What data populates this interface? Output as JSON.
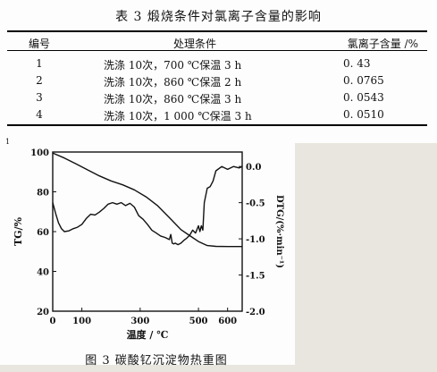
{
  "table": {
    "title": "表 3  煅烧条件对氯离子含量的影响",
    "headers": {
      "no": "编号",
      "condition": "处理条件",
      "chloride": "氯离子含量 /%"
    },
    "rows": [
      {
        "no": "1",
        "condition": "洗涤 10次，700 ℃保温 3 h",
        "chloride": "0. 43"
      },
      {
        "no": "2",
        "condition": "洗涤 10次，860 ℃保温 2 h",
        "chloride": "0. 0765"
      },
      {
        "no": "3",
        "condition": "洗涤 10次，860 ℃保温 3 h",
        "chloride": "0. 0543"
      },
      {
        "no": "4",
        "condition": "洗涤 10次，1 000 ℃保温 3 h",
        "chloride": "0. 0510"
      }
    ]
  },
  "footmark": "1",
  "figure": {
    "caption": "图 3   碳酸钇沉淀物热重图"
  },
  "chart_data": {
    "type": "line",
    "xlabel": "温度 / ℃",
    "ylabel": "TG/%",
    "ylabel_right": "DTG/(%·min⁻¹)",
    "xlim": [
      0,
      650
    ],
    "ylim": [
      20,
      100
    ],
    "ylim_right": [
      -2.0,
      0.2
    ],
    "xticks": [
      "0",
      "100",
      "300",
      "500",
      "600"
    ],
    "xtick_values": [
      0,
      100,
      300,
      500,
      600
    ],
    "yticks_left": [
      "20",
      "40",
      "60",
      "80",
      "100"
    ],
    "ytick_values_left": [
      20,
      40,
      60,
      80,
      100
    ],
    "yticks_right": [
      "-2.0",
      "-1.5",
      "-1.0",
      "-0.5",
      "0.0"
    ],
    "ytick_values_right": [
      -2.0,
      -1.5,
      -1.0,
      -0.5,
      0.0
    ],
    "colors": {
      "line": "#111111"
    },
    "series": [
      {
        "axis": "left",
        "x": [
          0,
          40,
          80,
          120,
          160,
          200,
          240,
          280,
          320,
          360,
          400,
          440,
          470,
          500,
          530,
          560,
          600,
          650
        ],
        "y": [
          99.5,
          97,
          94,
          91,
          88,
          85.5,
          83.5,
          81,
          77.5,
          73,
          67,
          61,
          58,
          55,
          53,
          52.6,
          52.5,
          52.5
        ]
      },
      {
        "axis": "right",
        "x": [
          0,
          10,
          20,
          30,
          40,
          55,
          70,
          85,
          100,
          115,
          130,
          145,
          160,
          175,
          190,
          205,
          220,
          235,
          250,
          265,
          280,
          295,
          310,
          325,
          340,
          355,
          370,
          385,
          400,
          405,
          410,
          415,
          420,
          430,
          440,
          450,
          460,
          470,
          480,
          490,
          500,
          505,
          510,
          515,
          520,
          530,
          540,
          550,
          560,
          580,
          600,
          620,
          640,
          650
        ],
        "y": [
          -0.5,
          -0.65,
          -0.78,
          -0.86,
          -0.9,
          -0.89,
          -0.86,
          -0.84,
          -0.8,
          -0.72,
          -0.66,
          -0.67,
          -0.63,
          -0.58,
          -0.52,
          -0.5,
          -0.52,
          -0.5,
          -0.54,
          -0.51,
          -0.56,
          -0.68,
          -0.73,
          -0.8,
          -0.88,
          -0.92,
          -0.96,
          -0.98,
          -1.01,
          -0.94,
          -1.06,
          -1.07,
          -1.06,
          -1.08,
          -1.06,
          -1.02,
          -0.99,
          -0.95,
          -0.88,
          -0.92,
          -0.82,
          -0.9,
          -0.82,
          -0.88,
          -0.5,
          -0.3,
          -0.28,
          -0.2,
          -0.06,
          0.0,
          -0.04,
          0.0,
          -0.02,
          0.0
        ]
      }
    ]
  }
}
